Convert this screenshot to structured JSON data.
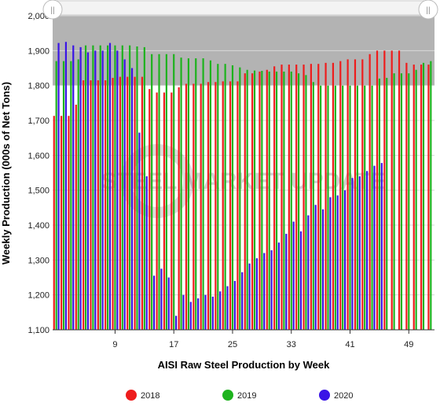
{
  "chart_data": {
    "type": "bar",
    "title": "",
    "xlabel": "AISI Raw Steel Production by Week",
    "ylabel": "Weekly Production (000s of Net Tons)",
    "ylim": [
      1100,
      2000
    ],
    "yticks": [
      1100,
      1200,
      1300,
      1400,
      1500,
      1600,
      1700,
      1800,
      1900,
      2000
    ],
    "xlim": [
      1,
      52
    ],
    "xticks": [
      9,
      17,
      25,
      33,
      41,
      49
    ],
    "legend_position": "bottom",
    "background_band": {
      "from": 1800,
      "to": 2000,
      "color": "#b3b3b3"
    },
    "watermark": "STEEL MARKET UPDATE",
    "navigator": {
      "handle_left": "||",
      "handle_right": "||"
    },
    "series": [
      {
        "name": "2018",
        "color": "#ee1c1c",
        "values": [
          1713,
          1713,
          1713,
          1745,
          1815,
          1815,
          1815,
          1815,
          1822,
          1825,
          1825,
          1825,
          1825,
          1790,
          1780,
          1780,
          1780,
          1795,
          1805,
          1805,
          1805,
          1810,
          1810,
          1812,
          1812,
          1812,
          1835,
          1835,
          1840,
          1845,
          1855,
          1860,
          1860,
          1860,
          1860,
          1862,
          1862,
          1865,
          1865,
          1870,
          1875,
          1875,
          1875,
          1890,
          1900,
          1900,
          1900,
          1900,
          1865,
          1860,
          1860,
          1860
        ]
      },
      {
        "name": "2019",
        "color": "#1db31d",
        "values": [
          1870,
          1870,
          1870,
          1875,
          1915,
          1915,
          1915,
          1915,
          1915,
          1915,
          1915,
          1912,
          1910,
          1890,
          1890,
          1890,
          1890,
          1880,
          1878,
          1878,
          1878,
          1872,
          1862,
          1862,
          1858,
          1852,
          1845,
          1843,
          1842,
          1840,
          1840,
          1840,
          1840,
          1835,
          1830,
          1810,
          1800,
          1800,
          1800,
          1800,
          1800,
          1800,
          1800,
          1800,
          1820,
          1822,
          1835,
          1835,
          1835,
          1845,
          1865,
          1870
        ]
      },
      {
        "name": "2020",
        "color": "#3a14e6",
        "values": [
          1922,
          1925,
          1915,
          1910,
          1895,
          1900,
          1900,
          1922,
          1900,
          1875,
          1850,
          1665,
          1540,
          1255,
          1275,
          1250,
          1140,
          1200,
          1180,
          1190,
          1200,
          1195,
          1210,
          1225,
          1240,
          1265,
          1290,
          1305,
          1320,
          1328,
          1350,
          1375,
          1410,
          1382,
          1428,
          1458,
          1445,
          1480,
          1485,
          1500,
          1535,
          1540,
          1555,
          1570,
          1578,
          null,
          null,
          null,
          null,
          null,
          null,
          null
        ]
      }
    ]
  }
}
